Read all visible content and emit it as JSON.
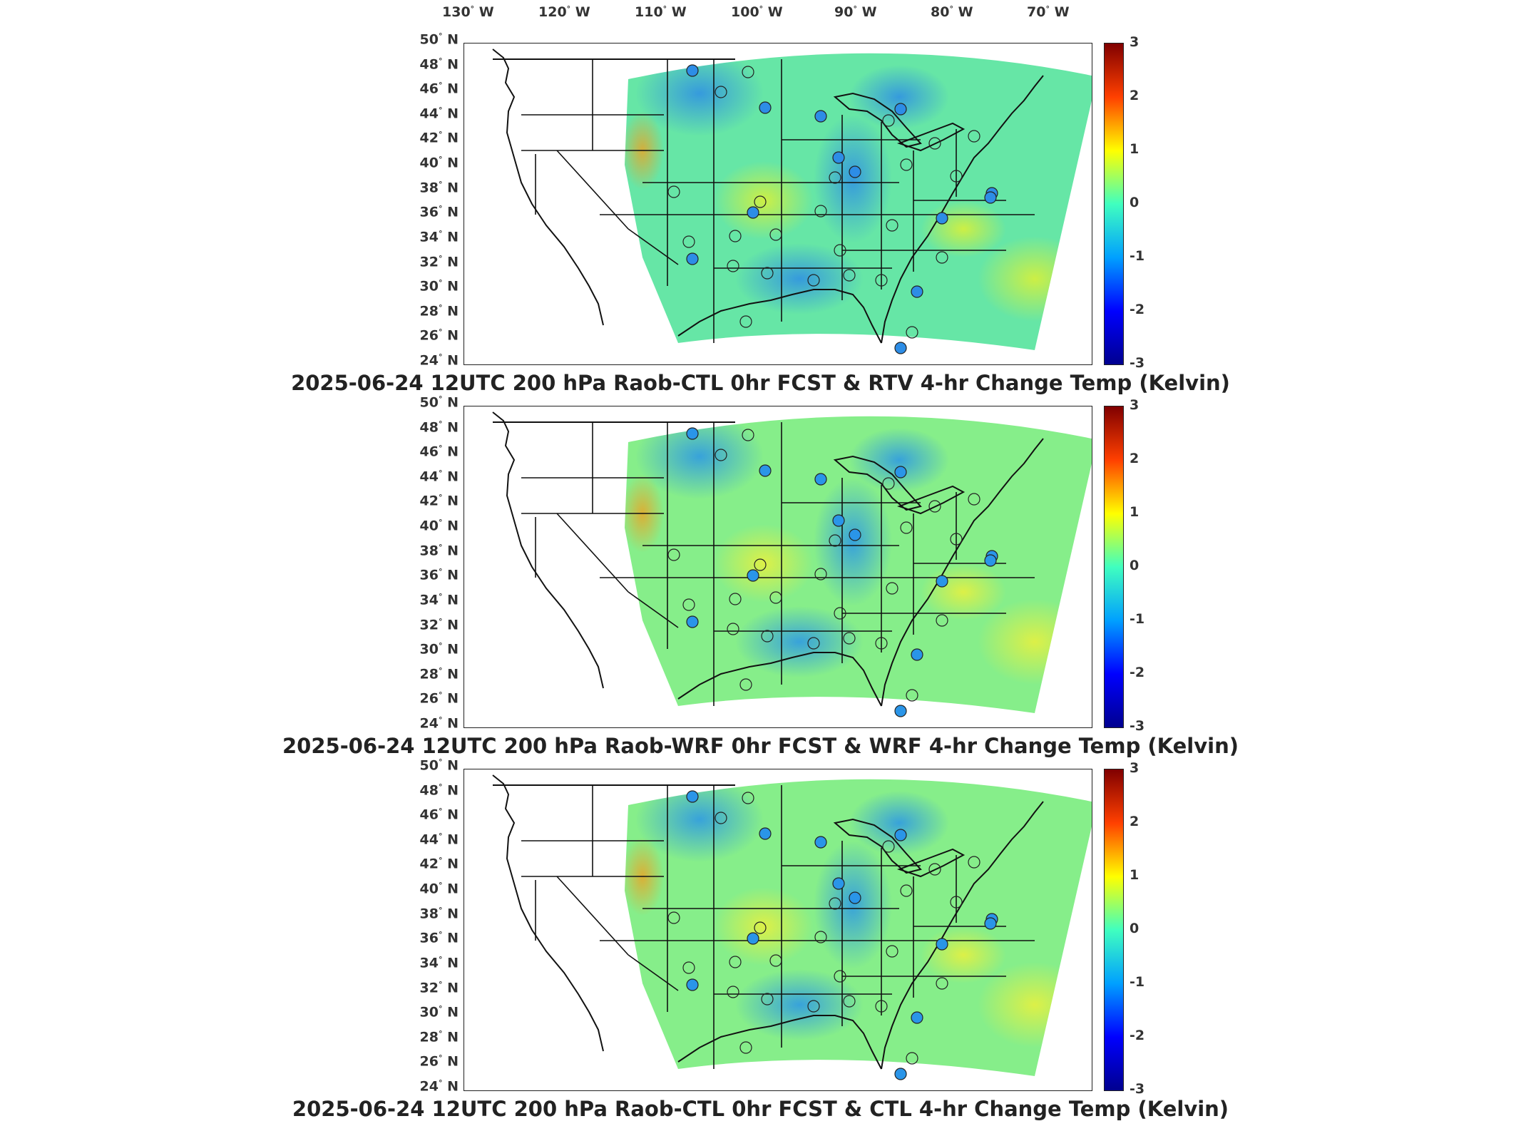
{
  "longitude_labels": [
    "130",
    "120",
    "110",
    "100",
    "90",
    "80",
    "70"
  ],
  "longitude_suffix": "W",
  "latitude_labels": [
    "50",
    "48",
    "46",
    "44",
    "42",
    "40",
    "38",
    "36",
    "34",
    "32",
    "30",
    "28",
    "26",
    "24"
  ],
  "latitude_suffix": "N",
  "colorbar_ticks": [
    "3",
    "2",
    "1",
    "0",
    "-1",
    "-2",
    "-3"
  ],
  "colorbar_range": [
    -3,
    3
  ],
  "colormap": [
    "#00008f",
    "#0000ff",
    "#00a0ff",
    "#40ffbf",
    "#ffff00",
    "#ff4000",
    "#800000"
  ],
  "panels": [
    {
      "title": "2025-06-24 12UTC 200 hPa Raob-CTL 0hr FCST & RTV 4-hr Change Temp (Kelvin)",
      "field_colors": {
        "main": "#66e6a6",
        "warm": "#d8f03a",
        "cold": "#2d8de6",
        "hot": "#f0a020"
      }
    },
    {
      "title": "2025-06-24 12UTC 200 hPa Raob-WRF 0hr FCST & WRF 4-hr Change Temp (Kelvin)",
      "field_colors": {
        "main": "#86ee8a",
        "warm": "#e6f040",
        "cold": "#2a95e8",
        "hot": "#f0a020"
      }
    },
    {
      "title": "2025-06-24 12UTC 200 hPa Raob-CTL 0hr FCST & CTL 4-hr Change Temp (Kelvin)",
      "field_colors": {
        "main": "#86ee8a",
        "warm": "#e6f040",
        "cold": "#2a95e8",
        "hot": "#f0a020"
      }
    }
  ]
}
